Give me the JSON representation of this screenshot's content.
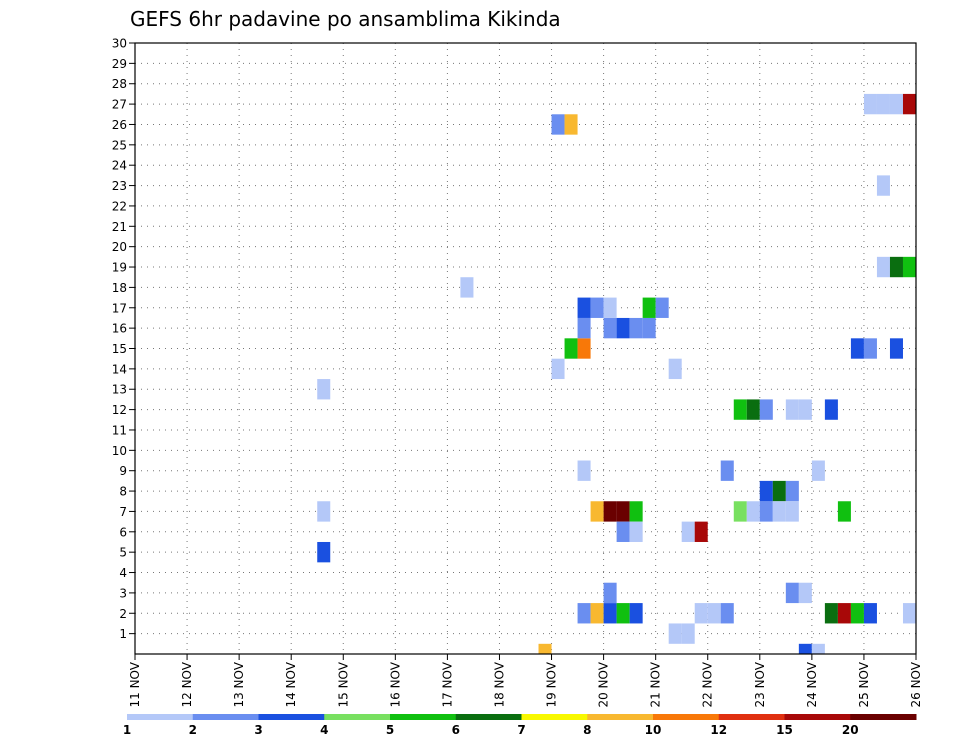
{
  "chart_data": {
    "type": "heatmap",
    "title": "GEFS 6hr padavine po ansamblima Kikinda",
    "xlabel": "",
    "ylabel": "",
    "x_ticks": [
      "11 NOV",
      "12 NOV",
      "13 NOV",
      "14 NOV",
      "15 NOV",
      "16 NOV",
      "17 NOV",
      "18 NOV",
      "19 NOV",
      "20 NOV",
      "21 NOV",
      "22 NOV",
      "23 NOV",
      "24 NOV",
      "25 NOV",
      "26 NOV"
    ],
    "y_ticks": [
      "1",
      "2",
      "3",
      "4",
      "5",
      "6",
      "7",
      "8",
      "9",
      "10",
      "11",
      "12",
      "13",
      "14",
      "15",
      "16",
      "17",
      "18",
      "19",
      "20",
      "21",
      "22",
      "23",
      "24",
      "25",
      "26",
      "27",
      "28",
      "29",
      "30"
    ],
    "xlim_days": [
      11,
      26
    ],
    "ylim": [
      0,
      30
    ],
    "grid": true,
    "time_step_hours": 6,
    "cell_fields": [
      "day",
      "member",
      "precip_mm"
    ],
    "cells": [
      [
        14.5,
        5,
        3
      ],
      [
        14.5,
        7,
        1
      ],
      [
        14.5,
        13,
        1
      ],
      [
        17.25,
        18,
        1
      ],
      [
        18.75,
        0,
        9
      ],
      [
        19,
        26,
        2
      ],
      [
        19.25,
        26,
        8
      ],
      [
        19,
        14,
        1
      ],
      [
        19.25,
        15,
        5
      ],
      [
        19.5,
        15,
        10
      ],
      [
        19.5,
        16,
        2
      ],
      [
        19.5,
        17,
        3
      ],
      [
        19.75,
        17,
        2
      ],
      [
        19.5,
        9,
        1
      ],
      [
        19.5,
        2,
        2
      ],
      [
        19.75,
        2,
        8
      ],
      [
        19.75,
        7,
        8
      ],
      [
        20,
        7,
        20
      ],
      [
        20.25,
        7,
        20
      ],
      [
        20.5,
        7,
        5
      ],
      [
        20,
        2,
        3
      ],
      [
        20.25,
        2,
        5
      ],
      [
        20.5,
        2,
        3
      ],
      [
        20,
        3,
        2
      ],
      [
        20.25,
        6,
        2
      ],
      [
        20.5,
        6,
        1
      ],
      [
        20,
        16,
        2
      ],
      [
        20,
        17,
        1
      ],
      [
        20.25,
        16,
        3
      ],
      [
        20.5,
        16,
        2
      ],
      [
        20.75,
        16,
        2
      ],
      [
        20.75,
        17,
        5
      ],
      [
        21,
        17,
        2
      ],
      [
        21.25,
        14,
        1
      ],
      [
        21.25,
        1,
        1
      ],
      [
        21.5,
        1,
        1
      ],
      [
        21.75,
        2,
        1
      ],
      [
        22,
        2,
        1
      ],
      [
        22.25,
        2,
        2
      ],
      [
        21.5,
        6,
        1
      ],
      [
        21.75,
        6,
        15
      ],
      [
        22.25,
        9,
        2
      ],
      [
        22.5,
        7,
        4
      ],
      [
        22.75,
        7,
        1
      ],
      [
        23,
        7,
        2
      ],
      [
        23,
        8,
        3
      ],
      [
        23.25,
        8,
        6
      ],
      [
        23.5,
        8,
        2
      ],
      [
        23.25,
        7,
        1
      ],
      [
        23.5,
        7,
        1
      ],
      [
        22.5,
        12,
        5
      ],
      [
        22.75,
        12,
        6
      ],
      [
        23,
        12,
        2
      ],
      [
        23.5,
        12,
        1
      ],
      [
        23.75,
        12,
        1
      ],
      [
        24.25,
        12,
        3
      ],
      [
        24,
        9,
        1
      ],
      [
        23.5,
        3,
        2
      ],
      [
        23.75,
        3,
        1
      ],
      [
        23.75,
        0,
        3
      ],
      [
        24,
        0,
        1
      ],
      [
        24.25,
        2,
        6
      ],
      [
        24.5,
        2,
        15
      ],
      [
        24.75,
        2,
        5
      ],
      [
        25,
        2,
        3
      ],
      [
        25.75,
        2,
        1
      ],
      [
        24.5,
        7,
        5
      ],
      [
        24.75,
        15,
        3
      ],
      [
        25,
        15,
        2
      ],
      [
        25.5,
        15,
        3
      ],
      [
        25.25,
        19,
        1
      ],
      [
        25.5,
        19,
        6
      ],
      [
        25.75,
        19,
        5
      ],
      [
        25.25,
        23,
        1
      ],
      [
        25,
        27,
        1
      ],
      [
        25.25,
        27,
        1
      ],
      [
        25.5,
        27,
        1
      ],
      [
        25.75,
        27,
        15
      ]
    ],
    "colorbar": {
      "labels": [
        "1",
        "2",
        "3",
        "4",
        "5",
        "6",
        "7",
        "8",
        "10",
        "12",
        "15",
        "20"
      ],
      "bins": [
        1,
        2,
        3,
        4,
        5,
        6,
        7,
        8,
        10,
        12,
        15,
        20
      ],
      "colors": [
        "#b4c8f8",
        "#6a8ef0",
        "#1a50e0",
        "#78e060",
        "#10c010",
        "#0a6e10",
        "#f8f800",
        "#f8b830",
        "#f87808",
        "#e03010",
        "#a80808",
        "#6a0000"
      ]
    }
  }
}
